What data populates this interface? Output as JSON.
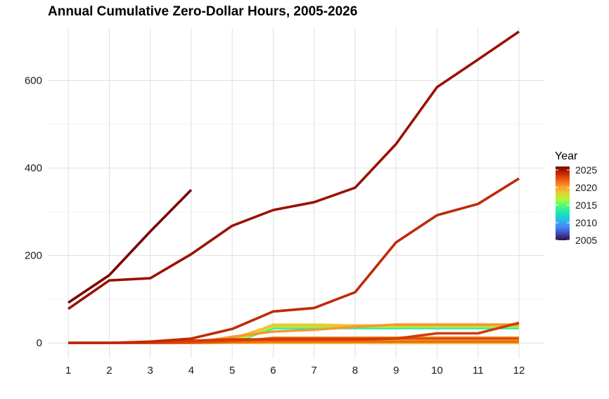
{
  "chart_data": {
    "type": "line",
    "title": "Annual Cumulative Zero-Dollar Hours, 2005-2026",
    "xlabel": "",
    "ylabel": "",
    "x": [
      1,
      2,
      3,
      4,
      5,
      6,
      7,
      8,
      9,
      10,
      11,
      12
    ],
    "xlim": [
      0.5,
      12.6
    ],
    "ylim": [
      -35,
      720
    ],
    "yticks": [
      0,
      200,
      400,
      600
    ],
    "grid": true,
    "legend": {
      "title": "Year",
      "placement": "right",
      "type": "colorbar",
      "range": [
        2005,
        2026
      ],
      "labels": [
        "2025",
        "2020",
        "2015",
        "2010",
        "2005"
      ],
      "colors": [
        "#7a0403",
        "#c42503",
        "#f05b12",
        "#fb9b29",
        "#e2d135",
        "#a4fc3c",
        "#46f884",
        "#1ae4b6",
        "#28bceb",
        "#4686fb",
        "#4149b5",
        "#30123b"
      ]
    },
    "series": [
      {
        "year": 2026,
        "color": "#7a0403",
        "values": [
          92,
          155,
          255,
          350,
          null,
          null,
          null,
          null,
          null,
          null,
          null,
          null
        ]
      },
      {
        "year": 2025,
        "color": "#9b1003",
        "values": [
          78,
          143,
          148,
          203,
          268,
          304,
          322,
          355,
          455,
          585,
          648,
          712
        ]
      },
      {
        "year": 2024,
        "color": "#bf2a05",
        "values": [
          0,
          0,
          3,
          10,
          32,
          72,
          80,
          116,
          230,
          292,
          318,
          376
        ]
      },
      {
        "year": 2023,
        "color": "#d33a06",
        "values": [
          0,
          0,
          2,
          5,
          8,
          8,
          8,
          8,
          10,
          22,
          22,
          46
        ]
      },
      {
        "year": 2022,
        "color": "#e04c0b",
        "values": [
          0,
          0,
          0,
          2,
          5,
          10,
          10,
          10,
          10,
          10,
          10,
          10
        ]
      },
      {
        "year": 2021,
        "color": "#ee6818",
        "values": [
          0,
          0,
          0,
          0,
          2,
          3,
          3,
          3,
          3,
          3,
          3,
          3
        ]
      },
      {
        "year": 2020,
        "color": "#f59a2c",
        "values": [
          0,
          0,
          0,
          0,
          14,
          26,
          30,
          37,
          42,
          42,
          42,
          42
        ]
      },
      {
        "year": 2019,
        "color": "#f0c23a",
        "values": [
          0,
          0,
          0,
          0,
          10,
          40,
          40,
          40,
          40,
          40,
          40,
          40
        ]
      },
      {
        "year": 2018,
        "color": "#e5d838",
        "values": [
          0,
          0,
          0,
          0,
          0,
          6,
          6,
          6,
          6,
          6,
          6,
          6
        ]
      },
      {
        "year": 2017,
        "color": "#c8ef34",
        "values": [
          0,
          0,
          0,
          0,
          4,
          42,
          42,
          40,
          40,
          40,
          40,
          40
        ]
      },
      {
        "year": 2016,
        "color": "#a4fc3c",
        "values": [
          0,
          0,
          0,
          0,
          2,
          38,
          38,
          38,
          38,
          38,
          38,
          38
        ]
      },
      {
        "year": 2015,
        "color": "#46f884",
        "values": [
          0,
          0,
          0,
          0,
          0,
          36,
          36,
          36,
          36,
          36,
          36,
          36
        ]
      },
      {
        "year": 2014,
        "color": "#1ae4b6",
        "values": [
          0,
          0,
          0,
          0,
          0,
          34,
          34,
          34,
          34,
          34,
          34,
          34
        ]
      },
      {
        "year": 2013,
        "color": "#f7b031",
        "values": [
          0,
          0,
          0,
          0,
          0,
          4,
          4,
          4,
          4,
          4,
          4,
          4
        ]
      },
      {
        "year": 2012,
        "color": "#f39a2a",
        "values": [
          0,
          0,
          0,
          0,
          0,
          12,
          12,
          12,
          12,
          12,
          12,
          12
        ]
      },
      {
        "year": 2011,
        "color": "#f9be37",
        "values": [
          0,
          0,
          0,
          0,
          0,
          0,
          0,
          0,
          0,
          0,
          0,
          0
        ]
      },
      {
        "year": 2010,
        "color": "#f5ad30",
        "values": [
          0,
          0,
          0,
          0,
          0,
          0,
          0,
          0,
          0,
          0,
          0,
          0
        ]
      },
      {
        "year": 2009,
        "color": "#f0a72c",
        "values": [
          0,
          0,
          0,
          0,
          0,
          0,
          0,
          0,
          0,
          0,
          0,
          0
        ]
      },
      {
        "year": 2008,
        "color": "#ec8a22",
        "values": [
          0,
          0,
          0,
          0,
          0,
          0,
          0,
          0,
          0,
          0,
          0,
          0
        ]
      },
      {
        "year": 2007,
        "color": "#e57a1c",
        "values": [
          0,
          0,
          0,
          0,
          0,
          0,
          0,
          0,
          0,
          0,
          0,
          0
        ]
      },
      {
        "year": 2006,
        "color": "#dd6216",
        "values": [
          0,
          0,
          0,
          0,
          0,
          0,
          0,
          0,
          0,
          0,
          0,
          0
        ]
      },
      {
        "year": 2005,
        "color": "#d44a0e",
        "values": [
          0,
          0,
          0,
          0,
          0,
          0,
          0,
          0,
          0,
          0,
          0,
          0
        ]
      }
    ]
  }
}
